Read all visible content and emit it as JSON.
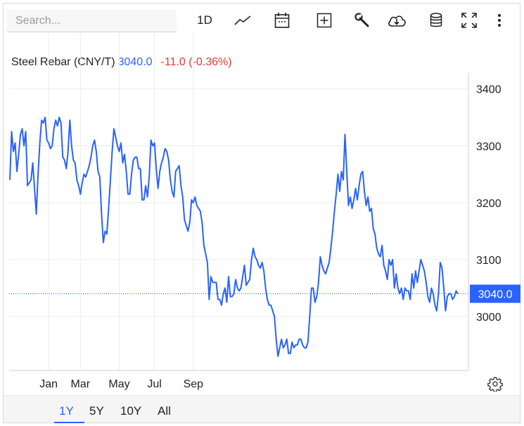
{
  "search": {
    "placeholder": "Search..."
  },
  "toolbar": {
    "interval_label": "1D",
    "icons": [
      "line-chart-icon",
      "calendar-icon",
      "add-indicator-icon",
      "wrench-icon",
      "cloud-download-icon",
      "database-icon",
      "fullscreen-icon",
      "more-icon"
    ]
  },
  "header": {
    "symbol": "Steel Rebar (CNY/T)",
    "price": "3040.0",
    "change": "-11.0 (-0.36%)"
  },
  "price_badge": "3040.0",
  "colors": {
    "line": "#2962ff",
    "up": "#2962ff",
    "down": "#e53935",
    "grid": "#ececec"
  },
  "ranges": [
    {
      "label": "1Y",
      "active": true
    },
    {
      "label": "5Y",
      "active": false
    },
    {
      "label": "10Y",
      "active": false
    },
    {
      "label": "All",
      "active": false
    }
  ],
  "chart_data": {
    "type": "line",
    "grid": true,
    "legend": "none",
    "ylim": [
      2905,
      3428
    ],
    "y_ticks": [
      3000,
      3100,
      3200,
      3300,
      3400
    ],
    "y_tick_labels": [
      "3000",
      "3100",
      "3200",
      "3300",
      "3400"
    ],
    "x_ticks": [
      {
        "label": "Jan",
        "x": 22
      },
      {
        "label": "Mar",
        "x": 40
      },
      {
        "label": "May",
        "x": 62
      },
      {
        "label": "Jul",
        "x": 82
      },
      {
        "label": "Sep",
        "x": 104
      }
    ],
    "last_value": 3040,
    "series": [
      {
        "values": [
          3240,
          3325,
          3290,
          3305,
          3255,
          3285,
          3320,
          3330,
          3300,
          3325,
          3230,
          3235,
          3240,
          3270,
          3225,
          3180,
          3250,
          3305,
          3345,
          3340,
          3350,
          3310,
          3305,
          3295,
          3300,
          3330,
          3345,
          3335,
          3350,
          3340,
          3280,
          3275,
          3260,
          3290,
          3345,
          3300,
          3275,
          3270,
          3240,
          3230,
          3215,
          3235,
          3250,
          3245,
          3255,
          3265,
          3280,
          3300,
          3310,
          3290,
          3255,
          3245,
          3180,
          3130,
          3150,
          3145,
          3190,
          3240,
          3290,
          3330,
          3315,
          3300,
          3290,
          3305,
          3270,
          3285,
          3255,
          3215,
          3215,
          3250,
          3275,
          3280,
          3280,
          3260,
          3260,
          3205,
          3205,
          3230,
          3210,
          3245,
          3310,
          3300,
          3305,
          3260,
          3225,
          3255,
          3270,
          3280,
          3295,
          3290,
          3275,
          3240,
          3220,
          3210,
          3255,
          3260,
          3265,
          3230,
          3210,
          3170,
          3160,
          3150,
          3165,
          3205,
          3200,
          3210,
          3195,
          3190,
          3185,
          3165,
          3125,
          3110,
          3095,
          3030,
          3070,
          3060,
          3060,
          3060,
          3030,
          3030,
          3020,
          3040,
          3050,
          3025,
          3070,
          3035,
          3035,
          3040,
          3065,
          3050,
          3045,
          3050,
          3070,
          3090,
          3055,
          3060,
          3065,
          3100,
          3120,
          3105,
          3100,
          3090,
          3085,
          3095,
          3080,
          3050,
          3030,
          3020,
          3020,
          3010,
          3000,
          2960,
          2930,
          2945,
          2960,
          2945,
          2950,
          2960,
          2935,
          2935,
          2955,
          2945,
          2950,
          2950,
          2960,
          2960,
          2950,
          2945,
          2945,
          2955,
          3000,
          3050,
          3050,
          3025,
          3035,
          3060,
          3105,
          3090,
          3080,
          3075,
          3085,
          3095,
          3120,
          3150,
          3185,
          3215,
          3250,
          3220,
          3255,
          3240,
          3320,
          3255,
          3195,
          3210,
          3190,
          3205,
          3225,
          3205,
          3230,
          3250,
          3255,
          3220,
          3195,
          3210,
          3185,
          3190,
          3155,
          3145,
          3120,
          3110,
          3105,
          3125,
          3090,
          3080,
          3065,
          3100,
          3090,
          3100,
          3050,
          3075,
          3050,
          3040,
          3050,
          3030,
          3050,
          3045,
          3045,
          3030,
          3075,
          3050,
          3080,
          3060,
          3080,
          3100,
          3090,
          3080,
          3060,
          3035,
          3025,
          3050,
          3040,
          3020,
          3010,
          3040,
          3095,
          3085,
          3050,
          3010,
          3035,
          3040,
          3040,
          3030,
          3035,
          3045,
          3040
        ]
      }
    ]
  }
}
